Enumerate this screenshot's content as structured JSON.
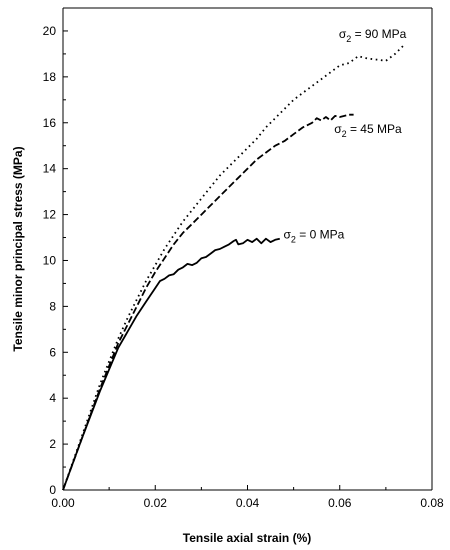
{
  "chart_data": {
    "type": "line",
    "xlabel": "Tensile axial strain (%)",
    "ylabel": "Tensile minor principal stress (MPa)",
    "xlim": [
      0,
      0.08
    ],
    "ylim": [
      0,
      21
    ],
    "xticks": [
      0,
      0.02,
      0.04,
      0.06,
      0.08
    ],
    "xtick_labels": [
      "0.00",
      "0.02",
      "0.04",
      "0.06",
      "0.08"
    ],
    "yticks": [
      0,
      2,
      4,
      6,
      8,
      10,
      12,
      14,
      16,
      18,
      20
    ],
    "ytick_labels": [
      "0",
      "2",
      "4",
      "6",
      "8",
      "10",
      "12",
      "14",
      "16",
      "18",
      "20"
    ],
    "grid": false,
    "series": [
      {
        "style": "solid",
        "label": {
          "symbol": "σ",
          "sub": "2",
          "rest": " = 0 MPa",
          "x": 0.0478,
          "y": 10.95
        },
        "x": [
          0,
          0.004,
          0.008,
          0.012,
          0.014,
          0.016,
          0.018,
          0.02,
          0.021,
          0.022,
          0.023,
          0.024,
          0.025,
          0.026,
          0.027,
          0.028,
          0.029,
          0.03,
          0.031,
          0.032,
          0.033,
          0.034,
          0.035,
          0.036,
          0.037,
          0.0375,
          0.038,
          0.039,
          0.04,
          0.041,
          0.042,
          0.043,
          0.044,
          0.045,
          0.046,
          0.047
        ],
        "y": [
          0,
          2.2,
          4.3,
          6.2,
          6.9,
          7.6,
          8.2,
          8.8,
          9.1,
          9.2,
          9.35,
          9.4,
          9.6,
          9.7,
          9.85,
          9.8,
          9.9,
          10.1,
          10.15,
          10.3,
          10.45,
          10.5,
          10.6,
          10.7,
          10.85,
          10.9,
          10.7,
          10.75,
          10.9,
          10.8,
          10.95,
          10.75,
          10.95,
          10.8,
          10.9,
          10.95
        ]
      },
      {
        "style": "dashed",
        "label": {
          "symbol": "σ",
          "sub": "2",
          "rest": " = 45 MPa",
          "x": 0.0588,
          "y": 15.55
        },
        "x": [
          0,
          0.004,
          0.008,
          0.012,
          0.014,
          0.016,
          0.018,
          0.02,
          0.022,
          0.024,
          0.026,
          0.028,
          0.03,
          0.032,
          0.034,
          0.036,
          0.038,
          0.04,
          0.042,
          0.044,
          0.046,
          0.048,
          0.05,
          0.052,
          0.054,
          0.055,
          0.056,
          0.057,
          0.058,
          0.059,
          0.06,
          0.061,
          0.062,
          0.063
        ],
        "y": [
          0,
          2.2,
          4.4,
          6.4,
          7.2,
          8.0,
          8.8,
          9.5,
          10.1,
          10.7,
          11.2,
          11.6,
          12.0,
          12.4,
          12.8,
          13.2,
          13.6,
          14.0,
          14.4,
          14.7,
          15.0,
          15.2,
          15.5,
          15.8,
          16.0,
          16.2,
          16.1,
          16.25,
          16.1,
          16.3,
          16.25,
          16.3,
          16.35,
          16.35
        ]
      },
      {
        "style": "dotted",
        "label": {
          "symbol": "σ",
          "sub": "2",
          "rest": " = 90 MPa",
          "x": 0.0598,
          "y": 19.7
        },
        "x": [
          0,
          0.004,
          0.008,
          0.012,
          0.014,
          0.016,
          0.018,
          0.02,
          0.022,
          0.024,
          0.026,
          0.028,
          0.03,
          0.032,
          0.034,
          0.036,
          0.038,
          0.04,
          0.042,
          0.044,
          0.046,
          0.048,
          0.05,
          0.052,
          0.054,
          0.056,
          0.058,
          0.06,
          0.062,
          0.064,
          0.066,
          0.068,
          0.07,
          0.072,
          0.074
        ],
        "y": [
          0,
          2.3,
          4.6,
          6.6,
          7.5,
          8.3,
          9.1,
          9.8,
          10.5,
          11.1,
          11.7,
          12.2,
          12.7,
          13.2,
          13.7,
          14.1,
          14.5,
          14.9,
          15.3,
          15.8,
          16.2,
          16.6,
          17.0,
          17.3,
          17.6,
          17.9,
          18.2,
          18.5,
          18.6,
          18.9,
          18.8,
          18.75,
          18.7,
          19.0,
          19.4
        ]
      }
    ]
  }
}
